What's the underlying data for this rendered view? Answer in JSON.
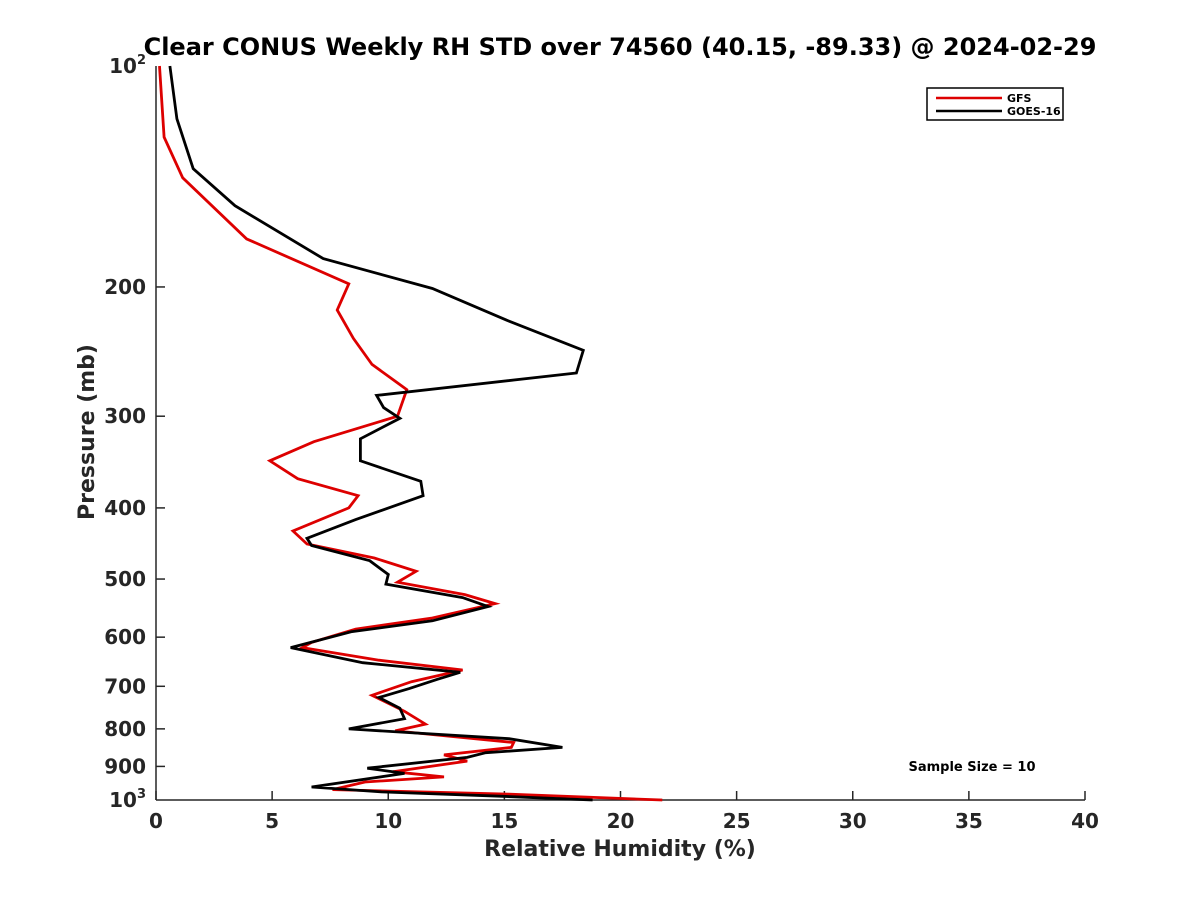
{
  "chart_data": {
    "type": "line",
    "title": "Clear CONUS Weekly RH STD over 74560 (40.15, -89.33) @ 2024-02-29",
    "xlabel": "Relative Humidity (%)",
    "ylabel": "Pressure (mb)",
    "xlim": [
      0,
      40
    ],
    "ylim": [
      100,
      1000
    ],
    "yscale": "log",
    "y_reversed": true,
    "x_ticks": [
      0,
      5,
      10,
      15,
      20,
      25,
      30,
      35,
      40
    ],
    "x_tick_labels": [
      "0",
      "5",
      "10",
      "15",
      "20",
      "25",
      "30",
      "35",
      "40"
    ],
    "y_ticks": [
      200,
      300,
      400,
      500,
      600,
      700,
      800,
      900
    ],
    "y_tick_labels": [
      "200",
      "300",
      "400",
      "500",
      "600",
      "700",
      "800",
      "900"
    ],
    "y_end_labels": {
      "top_base": "10",
      "top_exp": "2",
      "bottom_base": "10",
      "bottom_exp": "3"
    },
    "grid": false,
    "legend_position": "top-right",
    "annotation": "Sample Size = 10",
    "series": [
      {
        "name": "GFS",
        "color": "#dd0000",
        "points": [
          [
            0.15,
            100
          ],
          [
            0.35,
            125
          ],
          [
            1.15,
            142
          ],
          [
            3.9,
            172
          ],
          [
            8.3,
            198
          ],
          [
            7.8,
            215
          ],
          [
            8.5,
            235
          ],
          [
            9.3,
            255
          ],
          [
            10.8,
            276
          ],
          [
            10.4,
            300
          ],
          [
            6.8,
            325
          ],
          [
            4.9,
            345
          ],
          [
            6.1,
            365
          ],
          [
            8.7,
            385
          ],
          [
            8.3,
            400
          ],
          [
            5.9,
            430
          ],
          [
            6.5,
            448
          ],
          [
            9.4,
            468
          ],
          [
            11.2,
            488
          ],
          [
            10.4,
            505
          ],
          [
            13.3,
            525
          ],
          [
            14.6,
            540
          ],
          [
            11.9,
            565
          ],
          [
            8.6,
            585
          ],
          [
            6.7,
            610
          ],
          [
            6.3,
            620
          ],
          [
            9.6,
            645
          ],
          [
            13.2,
            665
          ],
          [
            11.0,
            690
          ],
          [
            9.3,
            720
          ],
          [
            10.7,
            757
          ],
          [
            11.6,
            788
          ],
          [
            10.3,
            805
          ],
          [
            15.4,
            835
          ],
          [
            15.3,
            848
          ],
          [
            12.4,
            868
          ],
          [
            13.4,
            885
          ],
          [
            10.2,
            915
          ],
          [
            12.4,
            930
          ],
          [
            9.0,
            945
          ],
          [
            7.6,
            968
          ],
          [
            15.2,
            982
          ],
          [
            21.8,
            1000
          ]
        ]
      },
      {
        "name": "GOES-16",
        "color": "#000000",
        "points": [
          [
            0.6,
            100
          ],
          [
            0.9,
            118
          ],
          [
            1.6,
            138
          ],
          [
            3.4,
            155
          ],
          [
            7.2,
            183
          ],
          [
            11.9,
            201
          ],
          [
            15.1,
            222
          ],
          [
            18.4,
            244
          ],
          [
            18.1,
            262
          ],
          [
            9.5,
            281
          ],
          [
            9.8,
            292
          ],
          [
            10.5,
            302
          ],
          [
            8.8,
            322
          ],
          [
            8.8,
            345
          ],
          [
            11.4,
            368
          ],
          [
            11.5,
            385
          ],
          [
            8.6,
            415
          ],
          [
            6.5,
            440
          ],
          [
            6.7,
            450
          ],
          [
            9.2,
            472
          ],
          [
            10.0,
            493
          ],
          [
            9.9,
            508
          ],
          [
            13.2,
            530
          ],
          [
            14.3,
            545
          ],
          [
            11.9,
            570
          ],
          [
            8.4,
            590
          ],
          [
            5.8,
            620
          ],
          [
            8.9,
            650
          ],
          [
            13.1,
            670
          ],
          [
            12.1,
            685
          ],
          [
            10.9,
            705
          ],
          [
            9.6,
            725
          ],
          [
            10.5,
            750
          ],
          [
            10.7,
            775
          ],
          [
            8.3,
            800
          ],
          [
            15.2,
            825
          ],
          [
            17.5,
            848
          ],
          [
            14.2,
            862
          ],
          [
            13.4,
            875
          ],
          [
            9.1,
            905
          ],
          [
            10.7,
            920
          ],
          [
            6.7,
            960
          ],
          [
            9.7,
            975
          ],
          [
            14.8,
            988
          ],
          [
            18.8,
            1000
          ]
        ]
      }
    ]
  }
}
